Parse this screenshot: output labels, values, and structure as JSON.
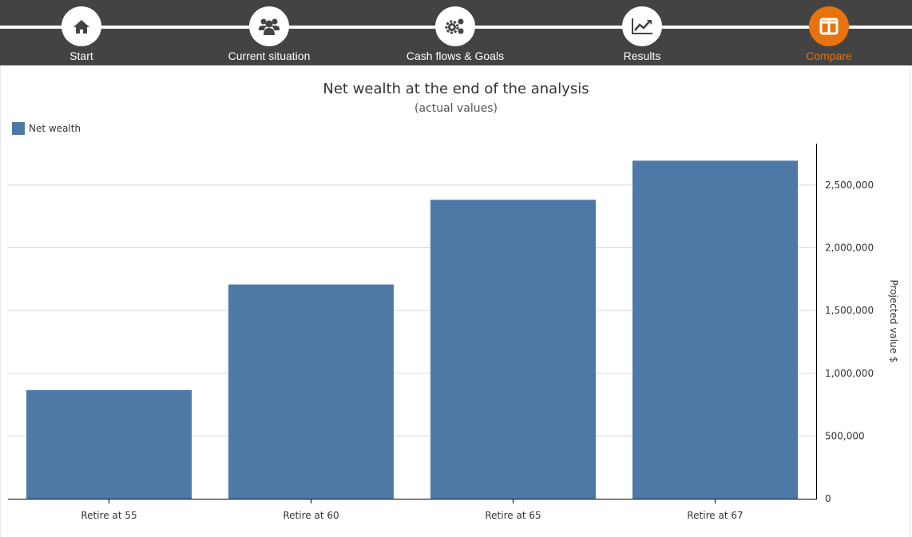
{
  "nav": {
    "steps": [
      {
        "label": "Start",
        "icon": "home-icon"
      },
      {
        "label": "Current situation",
        "icon": "users-icon"
      },
      {
        "label": "Cash flows & Goals",
        "icon": "gears-icon"
      },
      {
        "label": "Results",
        "icon": "line-chart-icon"
      },
      {
        "label": "Compare",
        "icon": "columns-icon",
        "active": true
      }
    ],
    "active_color": "#e8730c"
  },
  "chart_data": {
    "type": "bar",
    "title": "Net wealth at the end of the analysis",
    "subtitle": "(actual values)",
    "categories": [
      "Retire at 55",
      "Retire at 60",
      "Retire at 65",
      "Retire at 67"
    ],
    "series": [
      {
        "name": "Net wealth",
        "values": [
          866000,
          1707000,
          2382000,
          2694000
        ],
        "color": "#4e79a7"
      }
    ],
    "ylabel": "Projected value $",
    "ylim": [
      0,
      2830000
    ],
    "yticks": [
      "0",
      "500,000",
      "1,000,000",
      "1,500,000",
      "2,000,000",
      "2,500,000"
    ],
    "ytick_values": [
      0,
      500000,
      1000000,
      1500000,
      2000000,
      2500000
    ],
    "y_axis_side": "right",
    "grid": true,
    "legend": "top-left"
  }
}
